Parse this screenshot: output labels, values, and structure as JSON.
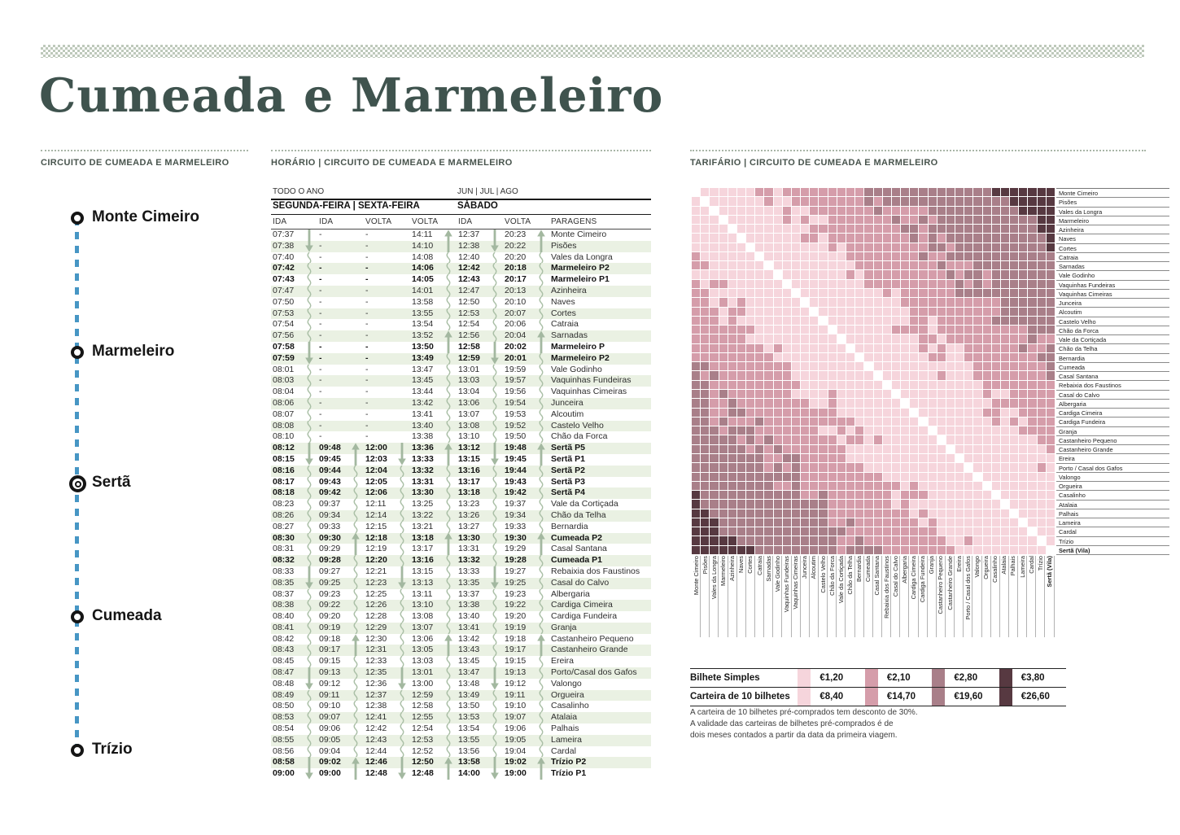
{
  "page": {
    "title": "Cumeada e Marmeleiro"
  },
  "sections": {
    "circuit": {
      "header": "CIRCUITO DE CUMEADA E MARMELEIRO"
    },
    "schedule": {
      "header": "HORÁRIO | CIRCUITO DE CUMEADA E MARMELEIRO"
    },
    "tariff": {
      "header": "TARIFÁRIO | CIRCUITO DE CUMEADA E MARMELEIRO"
    }
  },
  "route": {
    "line_color": "#4796c4",
    "stops": [
      {
        "name": "Monte Cimeiro",
        "marker": "single"
      },
      {
        "name": "Marmeleiro",
        "marker": "single"
      },
      {
        "name": "Sertã",
        "marker": "double"
      },
      {
        "name": "Cumeada",
        "marker": "single"
      },
      {
        "name": "Trízio",
        "marker": "single"
      }
    ]
  },
  "timetable": {
    "period_left": "TODO O ANO",
    "period_right": "JUN | JUL | AGO",
    "day_left": "SEGUNDA-FEIRA | SEXTA-FEIRA",
    "day_right": "SÁBADO",
    "columns": [
      "IDA",
      "IDA",
      "VOLTA",
      "VOLTA",
      "IDA",
      "VOLTA",
      "PARAGENS"
    ],
    "zebra_color": "#eaf1e3",
    "arrow_color": "#a3b8a0",
    "rows": [
      {
        "t": [
          "07:37",
          "-",
          "-",
          "14:11",
          "12:37",
          "20:23"
        ],
        "stop": "Monte Cimeiro",
        "marks": "|..^|^",
        "bold": false
      },
      {
        "t": [
          "07:38",
          "-",
          "-",
          "14:10",
          "12:38",
          "20:22"
        ],
        "stop": "Pisões",
        "marks": "v..|v|",
        "bold": false
      },
      {
        "t": [
          "07:40",
          "-",
          "-",
          "14:08",
          "12:40",
          "20:20"
        ],
        "stop": "Vales da Longra",
        "marks": "~..~~~",
        "bold": false
      },
      {
        "t": [
          "07:42",
          "-",
          "-",
          "14:06",
          "12:42",
          "20:18"
        ],
        "stop": "Marmeleiro P2",
        "marks": "~..~~~",
        "bold": true
      },
      {
        "t": [
          "07:43",
          "-",
          "-",
          "14:05",
          "12:43",
          "20:17"
        ],
        "stop": "Marmeleiro P1",
        "marks": "~..~~~",
        "bold": true
      },
      {
        "t": [
          "07:47",
          "-",
          "-",
          "14:01",
          "12:47",
          "20:13"
        ],
        "stop": "Azinheira",
        "marks": "~..~~~",
        "bold": false
      },
      {
        "t": [
          "07:50",
          "-",
          "-",
          "13:58",
          "12:50",
          "20:10"
        ],
        "stop": "Naves",
        "marks": "~..~~~",
        "bold": false
      },
      {
        "t": [
          "07:53",
          "-",
          "-",
          "13:55",
          "12:53",
          "20:07"
        ],
        "stop": "Cortes",
        "marks": "~..~~~",
        "bold": false
      },
      {
        "t": [
          "07:54",
          "-",
          "-",
          "13:54",
          "12:54",
          "20:06"
        ],
        "stop": "Catraia",
        "marks": "~..~~~",
        "bold": false
      },
      {
        "t": [
          "07:56",
          "-",
          "-",
          "13:52",
          "12:56",
          "20:04"
        ],
        "stop": "Sarnadas",
        "marks": "~..^~^",
        "bold": false
      },
      {
        "t": [
          "07:58",
          "-",
          "-",
          "13:50",
          "12:58",
          "20:02"
        ],
        "stop": "Marmeleiro P",
        "marks": "|..|||",
        "bold": true
      },
      {
        "t": [
          "07:59",
          "-",
          "-",
          "13:49",
          "12:59",
          "20:01"
        ],
        "stop": "Marmeleiro P2",
        "marks": "v..~v~",
        "bold": true
      },
      {
        "t": [
          "08:01",
          "-",
          "-",
          "13:47",
          "13:01",
          "19:59"
        ],
        "stop": "Vale Godinho",
        "marks": "~..~~~",
        "bold": false
      },
      {
        "t": [
          "08:03",
          "-",
          "-",
          "13:45",
          "13:03",
          "19:57"
        ],
        "stop": "Vaquinhas Fundeiras",
        "marks": "~..~~~",
        "bold": false
      },
      {
        "t": [
          "08:04",
          "-",
          "-",
          "13:44",
          "13:04",
          "19:56"
        ],
        "stop": "Vaquinhas Cimeiras",
        "marks": "~..~~~",
        "bold": false
      },
      {
        "t": [
          "08:06",
          "-",
          "-",
          "13:42",
          "13:06",
          "19:54"
        ],
        "stop": "Junceira",
        "marks": "~..~~~",
        "bold": false
      },
      {
        "t": [
          "08:07",
          "-",
          "-",
          "13:41",
          "13:07",
          "19:53"
        ],
        "stop": "Alcoutim",
        "marks": "~..~~~",
        "bold": false
      },
      {
        "t": [
          "08:08",
          "-",
          "-",
          "13:40",
          "13:08",
          "19:52"
        ],
        "stop": "Castelo Velho",
        "marks": "~..~~~",
        "bold": false
      },
      {
        "t": [
          "08:10",
          "-",
          "-",
          "13:38",
          "13:10",
          "19:50"
        ],
        "stop": "Chão da Forca",
        "marks": "~..~~~",
        "bold": false
      },
      {
        "t": [
          "08:12",
          "09:48",
          "12:00",
          "13:36",
          "13:12",
          "19:48"
        ],
        "stop": "Sertã P5",
        "marks": "|^|^|^",
        "bold": true
      },
      {
        "t": [
          "08:15",
          "09:45",
          "12:03",
          "13:33",
          "13:15",
          "19:45"
        ],
        "stop": "Sertã P1",
        "marks": "v|v|v|",
        "bold": true
      },
      {
        "t": [
          "08:16",
          "09:44",
          "12:04",
          "13:32",
          "13:16",
          "19:44"
        ],
        "stop": "Sertã P2",
        "marks": "~~~~~~",
        "bold": true
      },
      {
        "t": [
          "08:17",
          "09:43",
          "12:05",
          "13:31",
          "13:17",
          "19:43"
        ],
        "stop": "Sertã P3",
        "marks": "~~~~~~",
        "bold": true
      },
      {
        "t": [
          "08:18",
          "09:42",
          "12:06",
          "13:30",
          "13:18",
          "19:42"
        ],
        "stop": "Sertã P4",
        "marks": "~~~~~~",
        "bold": true
      },
      {
        "t": [
          "08:23",
          "09:37",
          "12:11",
          "13:25",
          "13:23",
          "19:37"
        ],
        "stop": "Vale da Cortiçada",
        "marks": "~~~~~~",
        "bold": false
      },
      {
        "t": [
          "08:26",
          "09:34",
          "12:14",
          "13:22",
          "13:26",
          "19:34"
        ],
        "stop": "Chão da Telha",
        "marks": "~~~~~~",
        "bold": false
      },
      {
        "t": [
          "08:27",
          "09:33",
          "12:15",
          "13:21",
          "13:27",
          "19:33"
        ],
        "stop": "Bernardia",
        "marks": "~~~~~~",
        "bold": false
      },
      {
        "t": [
          "08:30",
          "09:30",
          "12:18",
          "13:18",
          "13:30",
          "19:30"
        ],
        "stop": "Cumeada P2",
        "marks": "~^~^~^",
        "bold": true
      },
      {
        "t": [
          "08:31",
          "09:29",
          "12:19",
          "13:17",
          "13:31",
          "19:29"
        ],
        "stop": "Casal Santana",
        "marks": "~|~|~|",
        "bold": false
      },
      {
        "t": [
          "08:32",
          "09:28",
          "12:20",
          "13:16",
          "13:32",
          "19:28"
        ],
        "stop": "Cumeada P1",
        "marks": "~~~~~~",
        "bold": true
      },
      {
        "t": [
          "08:33",
          "09:27",
          "12:21",
          "13:15",
          "13:33",
          "19:27"
        ],
        "stop": "Rebaixia dos Faustinos",
        "marks": "|~|~|~",
        "bold": false
      },
      {
        "t": [
          "08:35",
          "09:25",
          "12:23",
          "13:13",
          "13:35",
          "19:25"
        ],
        "stop": "Casal do Calvo",
        "marks": "v~v~v~",
        "bold": false
      },
      {
        "t": [
          "08:37",
          "09:23",
          "12:25",
          "13:11",
          "13:37",
          "19:23"
        ],
        "stop": "Albergaria",
        "marks": "~~~~~~",
        "bold": false
      },
      {
        "t": [
          "08:38",
          "09:22",
          "12:26",
          "13:10",
          "13:38",
          "19:22"
        ],
        "stop": "Cardiga Cimeira",
        "marks": "~~~~~~",
        "bold": false
      },
      {
        "t": [
          "08:40",
          "09:20",
          "12:28",
          "13:08",
          "13:40",
          "19:20"
        ],
        "stop": "Cardiga Fundeira",
        "marks": "~~~~~~",
        "bold": false
      },
      {
        "t": [
          "08:41",
          "09:19",
          "12:29",
          "13:07",
          "13:41",
          "19:19"
        ],
        "stop": "Granja",
        "marks": "~~~~~~",
        "bold": false
      },
      {
        "t": [
          "08:42",
          "09:18",
          "12:30",
          "13:06",
          "13:42",
          "19:18"
        ],
        "stop": "Castanheiro Pequeno",
        "marks": "~^~^~^",
        "bold": false
      },
      {
        "t": [
          "08:43",
          "09:17",
          "12:31",
          "13:05",
          "13:43",
          "19:17"
        ],
        "stop": "Castanheiro Grande",
        "marks": "~|~|~|",
        "bold": false
      },
      {
        "t": [
          "08:45",
          "09:15",
          "12:33",
          "13:03",
          "13:45",
          "19:15"
        ],
        "stop": "Ereira",
        "marks": "~~~~~~",
        "bold": false
      },
      {
        "t": [
          "08:47",
          "09:13",
          "12:35",
          "13:01",
          "13:47",
          "19:13"
        ],
        "stop": "Porto/Casal dos Gafos",
        "marks": "|~|~|~",
        "bold": false
      },
      {
        "t": [
          "08:48",
          "09:12",
          "12:36",
          "13:00",
          "13:48",
          "19:12"
        ],
        "stop": "Valongo",
        "marks": "v~v~v~",
        "bold": false
      },
      {
        "t": [
          "08:49",
          "09:11",
          "12:37",
          "12:59",
          "13:49",
          "19:11"
        ],
        "stop": "Orgueira",
        "marks": "~~~~~~",
        "bold": false
      },
      {
        "t": [
          "08:50",
          "09:10",
          "12:38",
          "12:58",
          "13:50",
          "19:10"
        ],
        "stop": "Casalinho",
        "marks": "~~~~~~",
        "bold": false
      },
      {
        "t": [
          "08:53",
          "09:07",
          "12:41",
          "12:55",
          "13:53",
          "19:07"
        ],
        "stop": "Atalaia",
        "marks": "~~~~~~",
        "bold": false
      },
      {
        "t": [
          "08:54",
          "09:06",
          "12:42",
          "12:54",
          "13:54",
          "19:06"
        ],
        "stop": "Palhais",
        "marks": "~~~~~~",
        "bold": false
      },
      {
        "t": [
          "08:55",
          "09:05",
          "12:43",
          "12:53",
          "13:55",
          "19:05"
        ],
        "stop": "Lameira",
        "marks": "~~~~~~",
        "bold": false
      },
      {
        "t": [
          "08:56",
          "09:04",
          "12:44",
          "12:52",
          "13:56",
          "19:04"
        ],
        "stop": "Cardal",
        "marks": "~~~~~~",
        "bold": false
      },
      {
        "t": [
          "08:58",
          "09:02",
          "12:46",
          "12:50",
          "13:58",
          "19:02"
        ],
        "stop": "Trízio P2",
        "marks": "|^|^|^",
        "bold": true
      },
      {
        "t": [
          "09:00",
          "09:00",
          "12:48",
          "12:48",
          "14:00",
          "19:00"
        ],
        "stop": "Trízio P1",
        "marks": "v|v|v|",
        "bold": true
      }
    ]
  },
  "tariff": {
    "matrix_stops": [
      "Monte Cimeiro",
      "Pisões",
      "Vales da Longra",
      "Marmeleiro",
      "Azinheira",
      "Naves",
      "Cortes",
      "Catraia",
      "Sarnadas",
      "Vale Godinho",
      "Vaquinhas Fundeiras",
      "Vaquinhas Cimeiras",
      "Junceira",
      "Alcoutim",
      "Castelo Velho",
      "Chão da Forca",
      "Vale da Cortiçada",
      "Chão da Telha",
      "Bernardia",
      "Cumeada",
      "Casal Santana",
      "Rebaixia dos Faustinos",
      "Casal do Calvo",
      "Albergaria",
      "Cardiga Cimeira",
      "Cardiga Fundeira",
      "Granja",
      "Castanheiro Pequeno",
      "Castanheiro Grande",
      "Ereira",
      "Porto / Casal dos Gafos",
      "Valongo",
      "Orgueira",
      "Casalinho",
      "Atalaia",
      "Palhais",
      "Lameira",
      "Cardal",
      "Trízio",
      "Sertã (Vila)"
    ],
    "palette": {
      "c1": "#f6d5dc",
      "c2": "#d59daa",
      "c3": "#a97f89",
      "c4": "#573941",
      "diagonal": "#ffffff"
    },
    "legend": [
      {
        "label": "Bilhete Simples",
        "values": [
          "€1,20",
          "€2,10",
          "€2,80",
          "€3,80"
        ]
      },
      {
        "label": "Carteira de 10 bilhetes",
        "values": [
          "€8,40",
          "€14,70",
          "€19,60",
          "€26,60"
        ]
      }
    ],
    "notes": [
      "A carteira de 10 bilhetes pré-comprados tem desconto de 30%.",
      "A validade das carteiras de bilhetes pré-comprados é de",
      "dois meses contados a partir da data da primeira viagem."
    ]
  }
}
